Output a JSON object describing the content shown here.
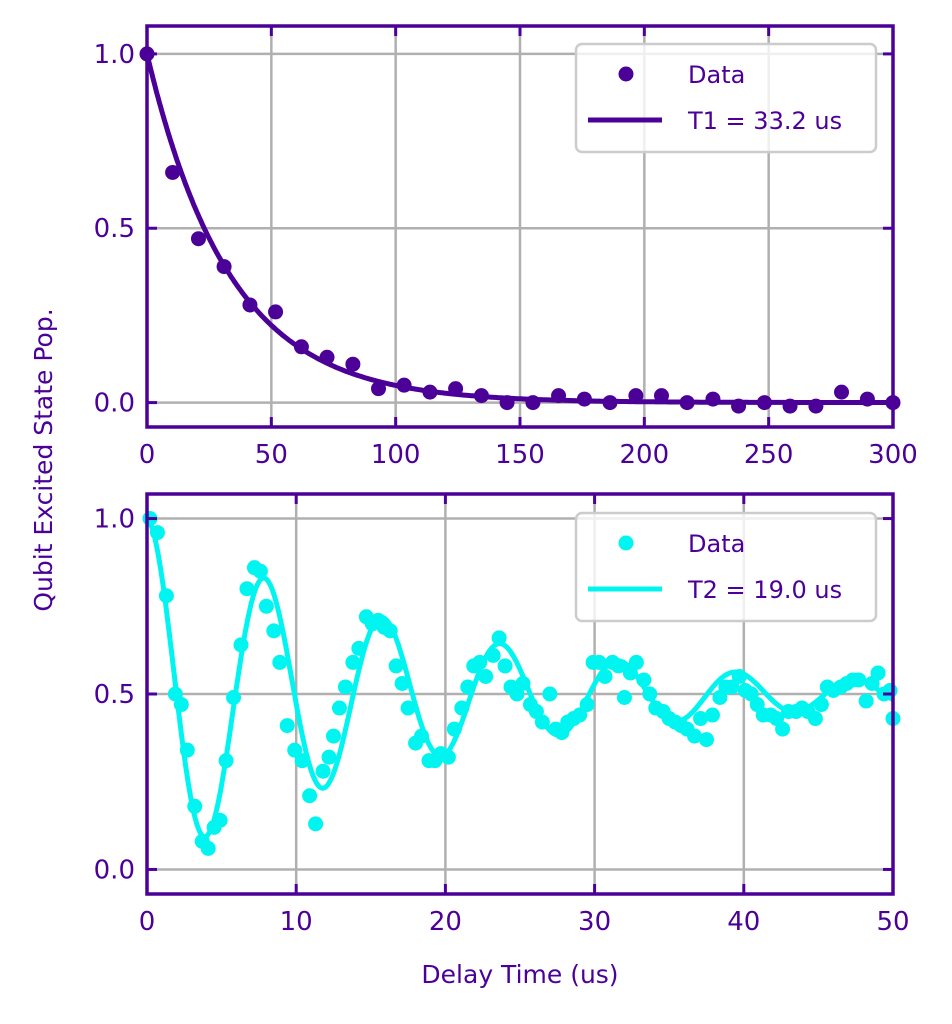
{
  "colors": {
    "axis": "#4b0097",
    "grid": "#b0b0b0",
    "t1_series": "#4b0097",
    "t2_series": "#00f5f0",
    "legend_border": "#cccccc"
  },
  "chart_data": [
    {
      "type": "scatter",
      "panel": "top",
      "title": "",
      "xlabel": "",
      "ylabel": "Qubit Excited State Pop.",
      "xlim": [
        0,
        300
      ],
      "ylim": [
        -0.07,
        1.08
      ],
      "grid": true,
      "xticks": [
        0,
        50,
        100,
        150,
        200,
        250,
        300
      ],
      "xtick_labels": [
        "0",
        "50",
        "100",
        "150",
        "200",
        "250",
        "300"
      ],
      "yticks": [
        0.0,
        0.5,
        1.0
      ],
      "ytick_labels": [
        "0.0",
        "0.5",
        "1.0"
      ],
      "legend": {
        "placement": "top-right",
        "entries": [
          {
            "label": "Data",
            "kind": "marker"
          },
          {
            "label": "T1 = 33.2 us",
            "kind": "line"
          }
        ]
      },
      "series": [
        {
          "name": "Data",
          "kind": "points",
          "x": [
            0,
            10.3,
            20.7,
            31.0,
            41.4,
            51.7,
            62.1,
            72.4,
            82.8,
            93.1,
            103.4,
            113.8,
            124.1,
            134.5,
            144.8,
            155.2,
            165.5,
            175.9,
            186.2,
            196.6,
            206.9,
            217.2,
            227.6,
            237.9,
            248.3,
            258.6,
            269.0,
            279.3,
            289.7,
            300.0
          ],
          "y": [
            1.0,
            0.66,
            0.47,
            0.39,
            0.28,
            0.26,
            0.16,
            0.13,
            0.11,
            0.04,
            0.05,
            0.03,
            0.04,
            0.02,
            0.0,
            0.0,
            0.02,
            0.01,
            0.0,
            0.02,
            0.02,
            0.0,
            0.01,
            -0.01,
            0.0,
            -0.01,
            -0.01,
            0.03,
            0.01,
            0.0
          ]
        },
        {
          "name": "T1 = 33.2 us",
          "kind": "fit",
          "model": "exp_decay",
          "amplitude": 1.0,
          "tau": 33.2,
          "offset": 0.0
        }
      ]
    },
    {
      "type": "scatter",
      "panel": "bottom",
      "title": "",
      "xlabel": "Delay Time  (us)",
      "ylabel": "Qubit Excited State Pop.",
      "xlim": [
        0,
        50
      ],
      "ylim": [
        -0.07,
        1.07
      ],
      "grid": true,
      "xticks": [
        0,
        10,
        20,
        30,
        40,
        50
      ],
      "xtick_labels": [
        "0",
        "10",
        "20",
        "30",
        "40",
        "50"
      ],
      "yticks": [
        0.0,
        0.5,
        1.0
      ],
      "ytick_labels": [
        "0.0",
        "0.5",
        "1.0"
      ],
      "legend": {
        "placement": "top-right",
        "entries": [
          {
            "label": "Data",
            "kind": "marker"
          },
          {
            "label": "T2 = 19.0 us",
            "kind": "line"
          }
        ]
      },
      "series": [
        {
          "name": "Data",
          "kind": "points",
          "x": [
            0.2,
            0.7,
            1.3,
            1.9,
            2.3,
            2.7,
            3.2,
            3.7,
            4.1,
            4.5,
            4.9,
            5.3,
            5.8,
            6.3,
            6.7,
            7.2,
            7.6,
            8.0,
            8.5,
            8.9,
            9.4,
            9.9,
            10.4,
            10.9,
            11.3,
            11.8,
            12.2,
            12.5,
            12.9,
            13.3,
            13.8,
            14.2,
            14.7,
            15.1,
            15.5,
            15.9,
            16.3,
            16.7,
            17.1,
            17.5,
            18.0,
            18.4,
            18.9,
            19.3,
            19.7,
            20.2,
            20.6,
            21.1,
            21.5,
            21.9,
            22.3,
            22.7,
            23.2,
            23.6,
            24.0,
            24.4,
            24.8,
            25.2,
            25.7,
            26.1,
            26.5,
            27.0,
            27.4,
            27.8,
            28.2,
            28.6,
            29.0,
            29.5,
            29.9,
            30.3,
            30.7,
            31.2,
            31.6,
            32.0,
            32.4,
            32.8,
            33.3,
            33.7,
            34.1,
            34.6,
            35.0,
            35.4,
            35.8,
            36.2,
            36.7,
            37.1,
            37.5,
            37.9,
            38.4,
            38.8,
            39.2,
            39.7,
            40.1,
            40.5,
            40.9,
            41.3,
            41.8,
            42.2,
            42.6,
            43.0,
            43.5,
            43.9,
            44.3,
            44.8,
            45.2,
            45.6,
            46.0,
            46.5,
            46.9,
            47.3,
            47.7,
            48.2,
            48.6,
            49.0,
            49.4,
            49.8,
            50.0
          ],
          "y": [
            1.0,
            0.96,
            0.78,
            0.5,
            0.47,
            0.34,
            0.18,
            0.08,
            0.06,
            0.12,
            0.14,
            0.31,
            0.49,
            0.64,
            0.8,
            0.86,
            0.85,
            0.75,
            0.68,
            0.59,
            0.41,
            0.34,
            0.31,
            0.21,
            0.13,
            0.28,
            0.32,
            0.38,
            0.46,
            0.52,
            0.59,
            0.63,
            0.72,
            0.7,
            0.71,
            0.69,
            0.68,
            0.58,
            0.53,
            0.46,
            0.36,
            0.38,
            0.31,
            0.31,
            0.33,
            0.32,
            0.4,
            0.46,
            0.52,
            0.58,
            0.59,
            0.55,
            0.61,
            0.66,
            0.58,
            0.52,
            0.5,
            0.53,
            0.47,
            0.45,
            0.42,
            0.5,
            0.4,
            0.39,
            0.42,
            0.43,
            0.44,
            0.47,
            0.59,
            0.59,
            0.55,
            0.59,
            0.58,
            0.49,
            0.56,
            0.59,
            0.54,
            0.5,
            0.46,
            0.45,
            0.43,
            0.42,
            0.41,
            0.4,
            0.38,
            0.43,
            0.37,
            0.44,
            0.49,
            0.52,
            0.52,
            0.55,
            0.51,
            0.5,
            0.47,
            0.44,
            0.44,
            0.43,
            0.4,
            0.45,
            0.45,
            0.46,
            0.45,
            0.43,
            0.47,
            0.52,
            0.51,
            0.52,
            0.53,
            0.54,
            0.54,
            0.48,
            0.53,
            0.56,
            0.5,
            0.51,
            0.43
          ]
        },
        {
          "name": "T2 = 19.0 us",
          "kind": "fit",
          "model": "damped_cosine",
          "amplitude": 0.5,
          "tau": 19.0,
          "frequency_mhz": 0.1265,
          "offset": 0.5
        }
      ]
    }
  ]
}
